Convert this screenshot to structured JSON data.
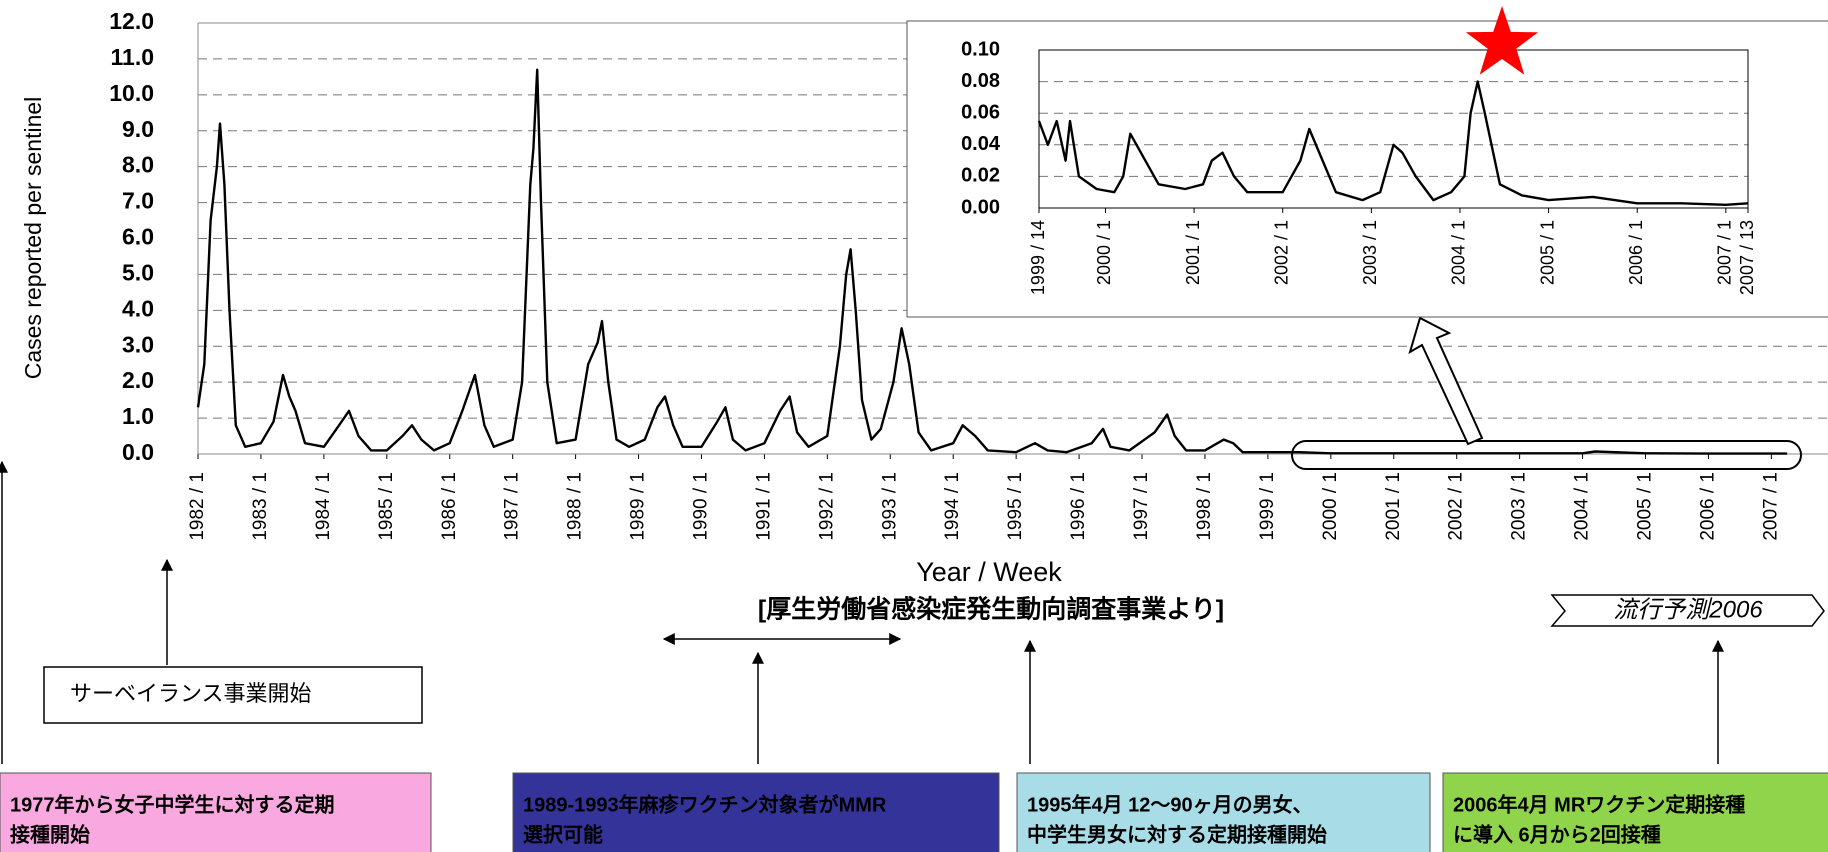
{
  "chart_data": [
    {
      "type": "line",
      "x_label": "Year / Week",
      "y_label": "Cases reported per sentinel",
      "color": "#000000",
      "grid": true,
      "x": [
        1982.0,
        1982.1,
        1982.2,
        1982.3,
        1982.35,
        1982.42,
        1982.5,
        1982.6,
        1982.75,
        1983.0,
        1983.2,
        1983.35,
        1983.45,
        1983.55,
        1983.7,
        1984.0,
        1984.2,
        1984.4,
        1984.55,
        1984.75,
        1985.0,
        1985.25,
        1985.4,
        1985.55,
        1985.75,
        1986.0,
        1986.2,
        1986.4,
        1986.55,
        1986.7,
        1987.0,
        1987.15,
        1987.28,
        1987.33,
        1987.39,
        1987.45,
        1987.55,
        1987.7,
        1988.0,
        1988.2,
        1988.35,
        1988.42,
        1988.52,
        1988.65,
        1988.85,
        1989.1,
        1989.3,
        1989.42,
        1989.55,
        1989.7,
        1990.0,
        1990.25,
        1990.38,
        1990.5,
        1990.7,
        1991.0,
        1991.25,
        1991.4,
        1991.52,
        1991.7,
        1992.0,
        1992.2,
        1992.3,
        1992.37,
        1992.45,
        1992.55,
        1992.7,
        1992.85,
        1993.05,
        1993.18,
        1993.3,
        1993.45,
        1993.65,
        1994.0,
        1994.15,
        1994.35,
        1994.55,
        1995.0,
        1995.3,
        1995.5,
        1995.8,
        1996.2,
        1996.38,
        1996.5,
        1996.8,
        1997.2,
        1997.4,
        1997.52,
        1997.7,
        1998.0,
        1998.3,
        1998.45,
        1998.6,
        1999.0,
        1999.5,
        2000.0,
        2001.0,
        2002.0,
        2003.0,
        2004.0,
        2004.2,
        2005.0,
        2006.0,
        2007.0,
        2007.25
      ],
      "values": [
        1.3,
        2.5,
        6.5,
        8.0,
        9.2,
        7.5,
        4.0,
        0.8,
        0.2,
        0.3,
        0.9,
        2.2,
        1.6,
        1.2,
        0.3,
        0.2,
        0.7,
        1.2,
        0.5,
        0.1,
        0.1,
        0.5,
        0.8,
        0.4,
        0.1,
        0.3,
        1.2,
        2.2,
        0.8,
        0.2,
        0.4,
        2.0,
        7.5,
        8.5,
        10.7,
        7.0,
        2.0,
        0.3,
        0.4,
        2.5,
        3.1,
        3.7,
        2.0,
        0.4,
        0.2,
        0.4,
        1.3,
        1.6,
        0.8,
        0.2,
        0.2,
        0.9,
        1.3,
        0.4,
        0.1,
        0.3,
        1.2,
        1.6,
        0.6,
        0.2,
        0.5,
        3.0,
        5.0,
        5.7,
        4.0,
        1.5,
        0.4,
        0.7,
        2.0,
        3.5,
        2.5,
        0.6,
        0.1,
        0.3,
        0.8,
        0.5,
        0.1,
        0.05,
        0.3,
        0.1,
        0.05,
        0.3,
        0.7,
        0.2,
        0.1,
        0.6,
        1.1,
        0.5,
        0.1,
        0.1,
        0.4,
        0.3,
        0.05,
        0.05,
        0.05,
        0.02,
        0.02,
        0.02,
        0.02,
        0.02,
        0.07,
        0.02,
        0.01,
        0.01,
        0.01
      ],
      "xlim": [
        1982,
        2007.9
      ],
      "ylim": [
        0,
        12
      ],
      "xticks": [
        {
          "value": 1982,
          "label": "1982 / 1"
        },
        {
          "value": 1983,
          "label": "1983 / 1"
        },
        {
          "value": 1984,
          "label": "1984 / 1"
        },
        {
          "value": 1985,
          "label": "1985 / 1"
        },
        {
          "value": 1986,
          "label": "1986 / 1"
        },
        {
          "value": 1987,
          "label": "1987 / 1"
        },
        {
          "value": 1988,
          "label": "1988 / 1"
        },
        {
          "value": 1989,
          "label": "1989 / 1"
        },
        {
          "value": 1990,
          "label": "1990 / 1"
        },
        {
          "value": 1991,
          "label": "1991 / 1"
        },
        {
          "value": 1992,
          "label": "1992 / 1"
        },
        {
          "value": 1993,
          "label": "1993 / 1"
        },
        {
          "value": 1994,
          "label": "1994 / 1"
        },
        {
          "value": 1995,
          "label": "1995 / 1"
        },
        {
          "value": 1996,
          "label": "1996 / 1"
        },
        {
          "value": 1997,
          "label": "1997 / 1"
        },
        {
          "value": 1998,
          "label": "1998 / 1"
        },
        {
          "value": 1999,
          "label": "1999 / 1"
        },
        {
          "value": 2000,
          "label": "2000 / 1"
        },
        {
          "value": 2001,
          "label": "2001 / 1"
        },
        {
          "value": 2002,
          "label": "2002 / 1"
        },
        {
          "value": 2003,
          "label": "2003 / 1"
        },
        {
          "value": 2004,
          "label": "2004 / 1"
        },
        {
          "value": 2005,
          "label": "2005 / 1"
        },
        {
          "value": 2006,
          "label": "2006 / 1"
        },
        {
          "value": 2007,
          "label": "2007 / 1"
        }
      ],
      "yticks": [
        {
          "value": 0,
          "label": "0.0"
        },
        {
          "value": 1,
          "label": "1.0"
        },
        {
          "value": 2,
          "label": "2.0"
        },
        {
          "value": 3,
          "label": "3.0"
        },
        {
          "value": 4,
          "label": "4.0"
        },
        {
          "value": 5,
          "label": "5.0"
        },
        {
          "value": 6,
          "label": "6.0"
        },
        {
          "value": 7,
          "label": "7.0"
        },
        {
          "value": 8,
          "label": "8.0"
        },
        {
          "value": 9,
          "label": "9.0"
        },
        {
          "value": 10,
          "label": "10.0"
        },
        {
          "value": 11,
          "label": "11.0"
        },
        {
          "value": 12,
          "label": "12.0"
        }
      ]
    },
    {
      "type": "line",
      "color": "#000000",
      "grid": true,
      "x": [
        1999.25,
        1999.35,
        1999.45,
        1999.55,
        1999.6,
        1999.7,
        1999.9,
        2000.1,
        2000.2,
        2000.28,
        2000.4,
        2000.6,
        2000.9,
        2001.1,
        2001.2,
        2001.32,
        2001.45,
        2001.6,
        2001.8,
        2002.0,
        2002.2,
        2002.3,
        2002.45,
        2002.6,
        2002.9,
        2003.1,
        2003.25,
        2003.35,
        2003.5,
        2003.7,
        2003.9,
        2004.05,
        2004.12,
        2004.2,
        2004.28,
        2004.45,
        2004.7,
        2005.0,
        2005.5,
        2006.0,
        2006.5,
        2007.0,
        2007.25
      ],
      "values": [
        0.055,
        0.04,
        0.055,
        0.03,
        0.055,
        0.02,
        0.012,
        0.01,
        0.02,
        0.047,
        0.035,
        0.015,
        0.012,
        0.015,
        0.03,
        0.035,
        0.02,
        0.01,
        0.01,
        0.01,
        0.03,
        0.05,
        0.03,
        0.01,
        0.005,
        0.01,
        0.04,
        0.035,
        0.02,
        0.005,
        0.01,
        0.02,
        0.06,
        0.08,
        0.06,
        0.015,
        0.008,
        0.005,
        0.007,
        0.003,
        0.003,
        0.002,
        0.003
      ],
      "xlim": [
        1999.25,
        2007.25
      ],
      "ylim": [
        0,
        0.1
      ],
      "xticks": [
        {
          "value": 1999.25,
          "label": "1999 / 14"
        },
        {
          "value": 2000,
          "label": "2000 / 1"
        },
        {
          "value": 2001,
          "label": "2001 / 1"
        },
        {
          "value": 2002,
          "label": "2002 / 1"
        },
        {
          "value": 2003,
          "label": "2003 / 1"
        },
        {
          "value": 2004,
          "label": "2004 / 1"
        },
        {
          "value": 2005,
          "label": "2005 / 1"
        },
        {
          "value": 2006,
          "label": "2006 / 1"
        },
        {
          "value": 2007,
          "label": "2007 / 1"
        },
        {
          "value": 2007.25,
          "label": "2007 / 13"
        }
      ],
      "yticks": [
        {
          "value": 0,
          "label": "0.00"
        },
        {
          "value": 0.02,
          "label": "0.02"
        },
        {
          "value": 0.04,
          "label": "0.04"
        },
        {
          "value": 0.06,
          "label": "0.06"
        },
        {
          "value": 0.08,
          "label": "0.08"
        },
        {
          "value": 0.1,
          "label": "0.10"
        }
      ]
    }
  ],
  "annotations": {
    "source": "[厚生労働省感染症発生動向調査事業より]",
    "forecast": "流行予測2006",
    "surveillance": "サーベイランス事業開始",
    "boxes": [
      {
        "color": "#f9a8e0",
        "text_color": "#000000",
        "lines": [
          "1977年から女子中学生に対する定期",
          "接種開始"
        ]
      },
      {
        "color": "#333399",
        "text_color": "#ffffff",
        "lines": [
          "1989-1993年麻疹ワクチン対象者がMMR",
          "選択可能"
        ]
      },
      {
        "color": "#a8dce6",
        "text_color": "#000000",
        "lines": [
          "1995年4月 12～90ヶ月の男女、",
          "中学生男女に対する定期接種開始"
        ]
      },
      {
        "color": "#8fd44a",
        "text_color": "#000000",
        "lines": [
          "2006年4月  MRワクチン定期接種",
          "に導入  6月から2回接種"
        ]
      }
    ]
  }
}
